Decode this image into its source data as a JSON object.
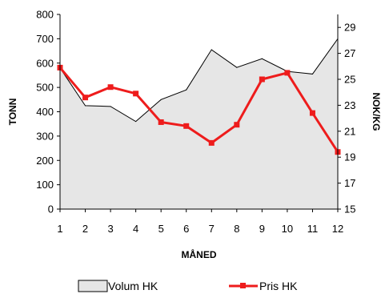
{
  "chart_data": {
    "type": "area-line",
    "x": [
      1,
      2,
      3,
      4,
      5,
      6,
      7,
      8,
      9,
      10,
      11,
      12
    ],
    "xlabel": "MÅNED",
    "ylabel_left": "TONN",
    "ylabel_right": "NOK/KG",
    "left_ylim": [
      0,
      800
    ],
    "left_ticks": [
      0,
      100,
      200,
      300,
      400,
      500,
      600,
      700,
      800
    ],
    "right_ylim": [
      15,
      30
    ],
    "right_ticks": [
      15,
      17,
      19,
      21,
      23,
      25,
      27,
      29
    ],
    "grid": false,
    "legend_position": "bottom",
    "series": [
      {
        "name": "Volum HK",
        "kind": "area",
        "axis": "left",
        "color": "#e6e6e6",
        "stroke": "#000000",
        "values": [
          580,
          425,
          422,
          360,
          450,
          490,
          655,
          582,
          618,
          566,
          555,
          700
        ]
      },
      {
        "name": "Pris HK",
        "kind": "line",
        "axis": "right",
        "color": "#ee1c1c",
        "values": [
          25.9,
          23.6,
          24.4,
          23.9,
          21.7,
          21.4,
          20.1,
          21.5,
          25.0,
          25.5,
          22.4,
          19.4
        ]
      }
    ]
  }
}
